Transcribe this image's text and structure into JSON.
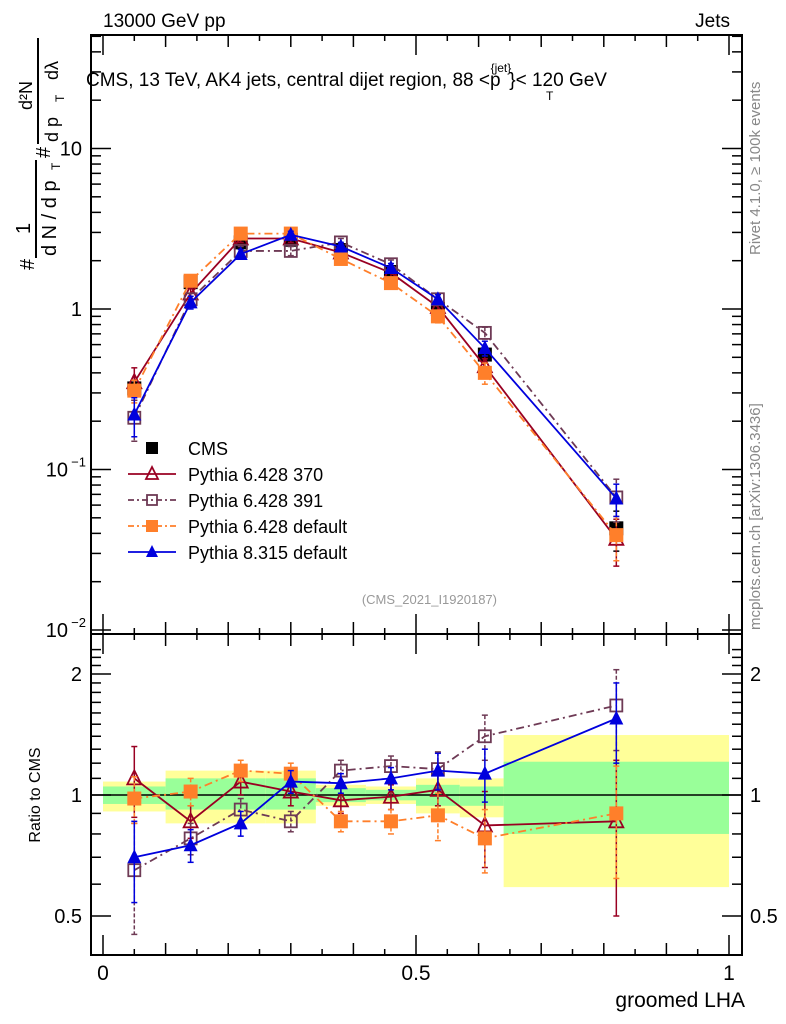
{
  "header": {
    "left": "13000 GeV pp",
    "right": "Jets"
  },
  "side_labels": {
    "rivet": "Rivet 4.1.0, ≥ 100k events",
    "mcplots": "mcplots.cern.ch [arXiv:1306.3436]"
  },
  "chart_data": [
    {
      "type": "line",
      "panel": "main",
      "title": "CMS, 13 TeV, AK4 jets, central dijet region, 88 <p_T^{jet}< 120 GeV",
      "title_parts": {
        "pre": "CMS, 13 TeV, AK4 jets, central dijet region, 88 <p",
        "sup": "{jet}",
        "sub": "T",
        "post": "}< 120 GeV"
      },
      "ylabel": "1/dN/dpT d²N/dpT dλ",
      "ylabel_parts": {
        "num_one": "1",
        "den": "d N / d p",
        "sub_T": "T",
        "num2": "d²N",
        "den2": "d p",
        "den2b": "dλ",
        "hash": "#"
      },
      "yscale": "log",
      "ylim": [
        0.0085,
        60
      ],
      "xlim": [
        -0.02,
        1.02
      ],
      "yticks": [
        {
          "value": 10,
          "label": "10"
        },
        {
          "value": 1,
          "label": "1"
        },
        {
          "value": 0.1,
          "label": "10",
          "exp": "−1"
        },
        {
          "value": 0.01,
          "label": "10",
          "exp": "−2"
        }
      ],
      "x": [
        0.05,
        0.14,
        0.22,
        0.3,
        0.38,
        0.46,
        0.535,
        0.61,
        0.82
      ],
      "series": [
        {
          "name": "CMS",
          "color": "#000000",
          "marker": "filled-square",
          "line": "none",
          "values": [
            0.32,
            1.47,
            2.6,
            2.7,
            2.33,
            1.7,
            1.0,
            0.52,
            0.043
          ],
          "err": [
            0.03,
            0.12,
            0.2,
            0.2,
            0.15,
            0.1,
            0.06,
            0.04,
            0.012
          ]
        },
        {
          "name": "Pythia 6.428 370",
          "color": "#990022",
          "marker": "open-triangle",
          "line": "solid",
          "values": [
            0.35,
            1.25,
            2.75,
            2.75,
            2.25,
            1.68,
            1.03,
            0.44,
            0.037
          ],
          "err": [
            0.08,
            0.1,
            0.15,
            0.15,
            0.12,
            0.1,
            0.06,
            0.05,
            0.012
          ]
        },
        {
          "name": "Pythia 6.428 391",
          "color": "#6e3a55",
          "marker": "open-square",
          "line": "dashdot",
          "values": [
            0.21,
            1.15,
            2.3,
            2.3,
            2.6,
            1.9,
            1.15,
            0.71,
            0.067
          ],
          "err": [
            0.06,
            0.1,
            0.15,
            0.15,
            0.15,
            0.12,
            0.08,
            0.06,
            0.02
          ]
        },
        {
          "name": "Pythia 6.428 default",
          "color": "#ff7f2a",
          "marker": "filled-square",
          "line": "dashdot",
          "values": [
            0.31,
            1.5,
            2.95,
            2.95,
            2.05,
            1.45,
            0.9,
            0.4,
            0.039
          ],
          "err": [
            0.05,
            0.1,
            0.15,
            0.15,
            0.15,
            0.12,
            0.08,
            0.06,
            0.012
          ]
        },
        {
          "name": "Pythia 8.315 default",
          "color": "#0000dd",
          "marker": "filled-triangle",
          "line": "solid",
          "values": [
            0.22,
            1.1,
            2.2,
            2.9,
            2.45,
            1.8,
            1.15,
            0.57,
            0.066
          ],
          "err": [
            0.06,
            0.1,
            0.15,
            0.15,
            0.15,
            0.12,
            0.08,
            0.06,
            0.015
          ]
        }
      ],
      "legend": {
        "placement": "bottom-left"
      },
      "analysis_label": "(CMS_2021_I1920187)"
    },
    {
      "type": "line",
      "panel": "ratio",
      "ylabel": "Ratio to CMS",
      "yscale": "log",
      "ylim": [
        0.4,
        2.4
      ],
      "xlabel": "groomed LHA",
      "xlim": [
        -0.02,
        1.02
      ],
      "xticks": [
        {
          "value": 0,
          "label": "0"
        },
        {
          "value": 0.5,
          "label": "0.5"
        },
        {
          "value": 1,
          "label": "1"
        }
      ],
      "yticks": [
        {
          "value": 0.5,
          "label": "0.5"
        },
        {
          "value": 1,
          "label": "1"
        },
        {
          "value": 2,
          "label": "2"
        }
      ],
      "bands": {
        "edges": [
          0,
          0.1,
          0.26,
          0.34,
          0.42,
          0.5,
          0.57,
          0.64,
          1.0
        ],
        "stat_color": "#99ff99",
        "total_color": "#ffff99",
        "stat": [
          [
            0.95,
            1.05
          ],
          [
            0.92,
            1.1
          ],
          [
            0.92,
            1.1
          ],
          [
            0.96,
            1.04
          ],
          [
            0.97,
            1.03
          ],
          [
            0.94,
            1.06
          ],
          [
            0.94,
            1.05
          ],
          [
            0.8,
            1.21
          ]
        ],
        "total": [
          [
            0.91,
            1.08
          ],
          [
            0.85,
            1.15
          ],
          [
            0.85,
            1.15
          ],
          [
            0.94,
            1.06
          ],
          [
            0.95,
            1.05
          ],
          [
            0.9,
            1.1
          ],
          [
            0.88,
            1.1
          ],
          [
            0.59,
            1.41
          ]
        ]
      },
      "x": [
        0.05,
        0.14,
        0.22,
        0.3,
        0.38,
        0.46,
        0.535,
        0.61,
        0.82
      ],
      "series": [
        {
          "name": "Pythia 6.428 370",
          "color": "#990022",
          "marker": "open-triangle",
          "line": "solid",
          "values": [
            1.1,
            0.86,
            1.08,
            1.02,
            0.97,
            0.99,
            1.03,
            0.84,
            0.86
          ],
          "err": [
            0.22,
            0.08,
            0.08,
            0.08,
            0.07,
            0.07,
            0.09,
            0.18,
            0.36
          ]
        },
        {
          "name": "Pythia 6.428 391",
          "color": "#6e3a55",
          "marker": "open-square",
          "line": "dashdot",
          "values": [
            0.65,
            0.78,
            0.92,
            0.86,
            1.15,
            1.18,
            1.16,
            1.4,
            1.67
          ],
          "err": [
            0.2,
            0.07,
            0.06,
            0.05,
            0.07,
            0.07,
            0.12,
            0.18,
            0.38
          ]
        },
        {
          "name": "Pythia 6.428 default",
          "color": "#ff7f2a",
          "marker": "filled-square",
          "line": "dashdot",
          "values": [
            0.98,
            1.02,
            1.15,
            1.13,
            0.86,
            0.86,
            0.89,
            0.78,
            0.9
          ],
          "err": [
            0.13,
            0.08,
            0.07,
            0.07,
            0.05,
            0.06,
            0.12,
            0.14,
            0.28
          ]
        },
        {
          "name": "Pythia 8.315 default",
          "color": "#0000dd",
          "marker": "filled-triangle",
          "line": "solid",
          "values": [
            0.7,
            0.75,
            0.85,
            1.08,
            1.07,
            1.1,
            1.15,
            1.13,
            1.55
          ],
          "err": [
            0.16,
            0.07,
            0.06,
            0.07,
            0.06,
            0.07,
            0.12,
            0.17,
            0.35
          ]
        }
      ]
    }
  ]
}
